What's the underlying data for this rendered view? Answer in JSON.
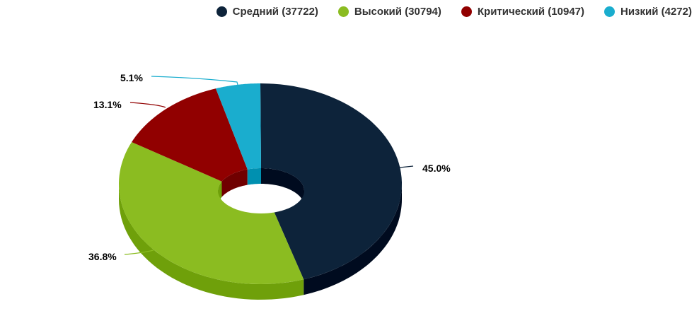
{
  "chart_data": {
    "type": "pie",
    "variant": "3d-donut",
    "legend_position": "top-right",
    "series": [
      {
        "name": "Средний",
        "value": 37722,
        "percent_label": "45.0%",
        "color": "#0d233a",
        "side_color": "#000b1f"
      },
      {
        "name": "Высокий",
        "value": 30794,
        "percent_label": "36.8%",
        "color": "#8bbc21",
        "side_color": "#6fa00a"
      },
      {
        "name": "Критический",
        "value": 10947,
        "percent_label": "13.1%",
        "color": "#910000",
        "side_color": "#700000"
      },
      {
        "name": "Низкий",
        "value": 4272,
        "percent_label": "5.1%",
        "color": "#1aadce",
        "side_color": "#0090b0"
      }
    ],
    "legend_labels": [
      "Средний (37722)",
      "Высокий (30794)",
      "Критический (10947)",
      "Низкий (4272)"
    ]
  }
}
